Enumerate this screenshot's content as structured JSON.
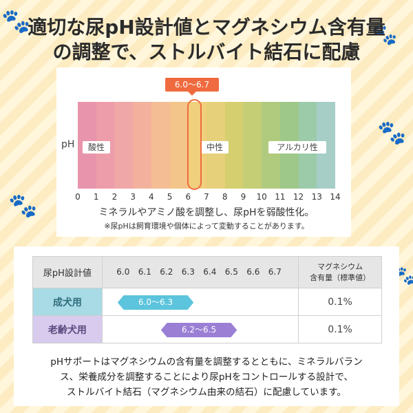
{
  "headline": {
    "line1": "適切な尿pH設計値とマグネシウム含有量",
    "line2": "の調整で、ストルバイト結石に配慮"
  },
  "ph_chart": {
    "axis_label": "pH",
    "design_range_tag": "6.0〜6.7",
    "zone_labels": {
      "acid": "酸性",
      "neutral": "中性",
      "alkaline": "アルカリ性"
    },
    "ticks": [
      "0",
      "1",
      "2",
      "3",
      "4",
      "5",
      "6",
      "7",
      "8",
      "9",
      "10",
      "11",
      "12",
      "13",
      "14"
    ],
    "column_colors": [
      "#e994ad",
      "#ed9da9",
      "#f0a7a7",
      "#f3b19d",
      "#f5bd94",
      "#f4c58a",
      "#f0cf7d",
      "#e6d07a",
      "#d5cf6f",
      "#c5cd75",
      "#b0ca7e",
      "#9ec889",
      "#9ccbaa",
      "#a6cec7"
    ],
    "note_main": "ミネラルやアミノ酸を調整し、尿pHを弱酸性化。",
    "note_sub": "※尿pHは飼育環境や個体によって変動することがあります。"
  },
  "design_table": {
    "header_title": "尿pH設計値",
    "scale_values": [
      "6.0",
      "6.1",
      "6.2",
      "6.3",
      "6.4",
      "6.5",
      "6.6",
      "6.7"
    ],
    "mg_header_line1": "マグネシウム",
    "mg_header_line2": "含有量（標準値）",
    "rows": [
      {
        "label": "成犬用",
        "range_text": "6.0〜6.3",
        "ph_min": 6.0,
        "ph_max": 6.3,
        "mg": "0.1%"
      },
      {
        "label": "老齢犬用",
        "range_text": "6.2〜6.5",
        "ph_min": 6.2,
        "ph_max": 6.5,
        "mg": "0.1%"
      }
    ]
  },
  "footer": {
    "line1": "pHサポートはマグネシウムの含有量を調整するとともに、ミネラルバラン",
    "line2": "ス、栄養成分を調整することにより尿pHをコントロールする設計で、",
    "line3": "ストルバイト結石（マグネシウム由来の結石）に配慮しています。"
  },
  "colors": {
    "accent": "#ef6b3f",
    "adult_pill": "#5cc4dc",
    "senior_pill": "#9a7fd4",
    "adult_label_bg": "#a9dbe6",
    "senior_label_bg": "#d8cbee"
  }
}
